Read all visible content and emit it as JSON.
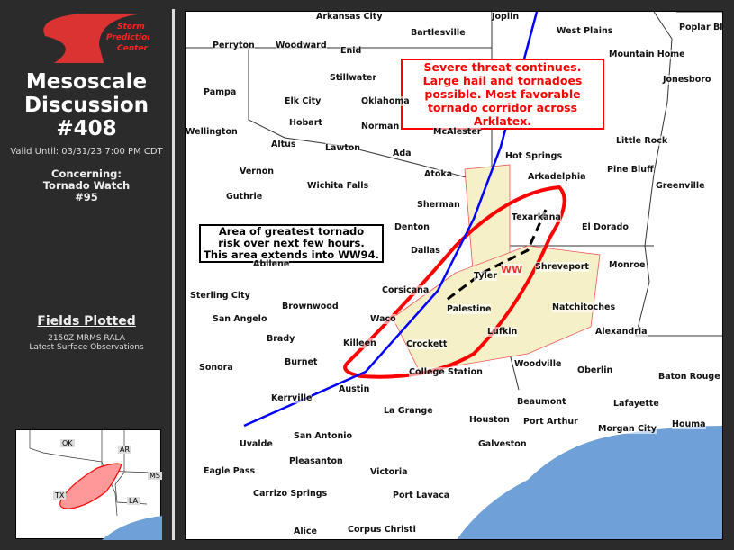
{
  "sidebar": {
    "logo_text": [
      "Storm",
      "Prediction",
      "Center"
    ],
    "title_line1": "Mesoscale",
    "title_line2": "Discussion",
    "number": "#408",
    "valid": "Valid Until: 03/31/23 7:00 PM CDT",
    "concerning_label": "Concerning:",
    "concerning_line1": "Tornado Watch",
    "concerning_line2": "#95",
    "fields_title": "Fields Plotted",
    "fields": [
      "2150Z MRMS RALA",
      "Latest Surface Observations"
    ],
    "inset_states": [
      "OK",
      "AR",
      "MS",
      "TX",
      "LA"
    ]
  },
  "map": {
    "note_threat": [
      "Severe threat continues.",
      "Large hail and tornadoes",
      "possible. Most favorable",
      "tornado corridor across Arklatex."
    ],
    "note_area": [
      "Area of greatest tornado",
      "risk over next few hours.",
      "This area extends into WW94."
    ],
    "watch_label": "WW",
    "colors": {
      "md_outline": "#ff0000",
      "front": "#0000ff",
      "watch_fill": "#f5f0c8",
      "water": "#6fa0d8"
    },
    "cities": [
      "Arkansas City",
      "Joplin",
      "Bartlesville",
      "West Plains",
      "Poplar Blu",
      "Perryton",
      "Woodward",
      "Enid",
      "Mountain Home",
      "Stillwater",
      "Jonesboro",
      "Pampa",
      "Elk City",
      "Oklahoma",
      "Hobart",
      "Norman",
      "Wellington",
      "Altus",
      "Lawton",
      "Ada",
      "McAlester",
      "Little Rock",
      "Hot Springs",
      "Vernon",
      "Atoka",
      "Arkadelphia",
      "Pine Bluff",
      "Guthrie",
      "Wichita Falls",
      "Sherman",
      "Texarkana",
      "Greenville",
      "Denton",
      "Dallas",
      "El Dorado",
      "Abilene",
      "Tyler",
      "Shreveport",
      "Monroe",
      "Sterling City",
      "Corsicana",
      "Brownwood",
      "Palestine",
      "Natchitoches",
      "San Angelo",
      "Waco",
      "Alexandria",
      "Brady",
      "Killeen",
      "Crockett",
      "Lufkin",
      "Sonora",
      "Burnet",
      "College Station",
      "Woodville",
      "Oberlin",
      "Baton Rouge",
      "Austin",
      "Kerrville",
      "La Grange",
      "Beaumont",
      "Lafayette",
      "Port Arthur",
      "Houston",
      "Houma",
      "Morgan City",
      "San Antonio",
      "Galveston",
      "Uvalde",
      "Pleasanton",
      "Eagle Pass",
      "Victoria",
      "Port Lavaca",
      "Carrizo Springs",
      "Alice",
      "Corpus Christi"
    ]
  }
}
